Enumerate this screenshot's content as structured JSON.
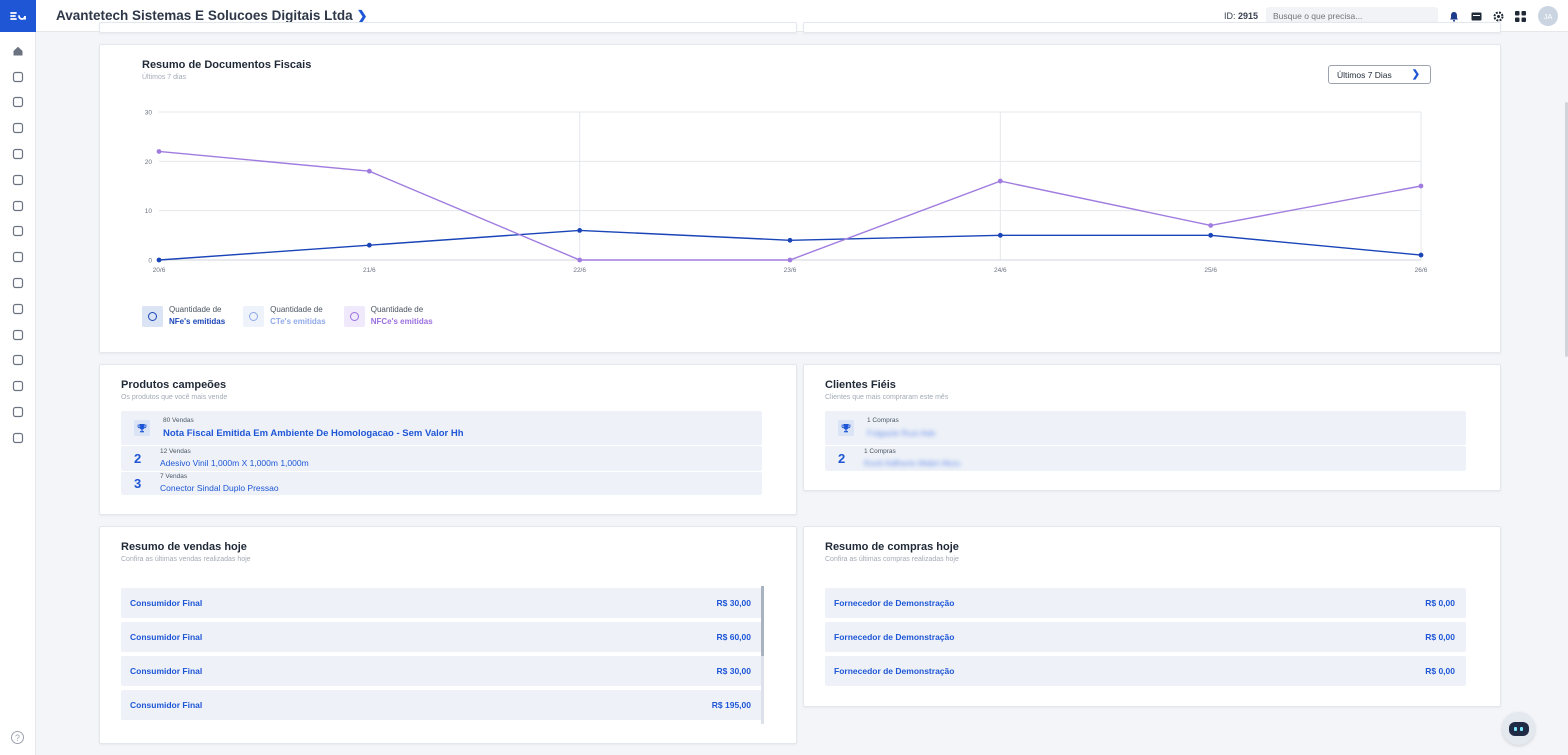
{
  "header": {
    "company_name": "Avantetech Sistemas E Solucoes Digitais Ltda",
    "id_prefix": "ID:",
    "id_value": "2915",
    "search_placeholder": "Busque o que precisa...",
    "avatar_initials": "JA"
  },
  "sidebar": {
    "icons": [
      "home-icon",
      "edit-icon",
      "chart-bars-icon",
      "connections-icon",
      "login-icon",
      "documents-icon",
      "cart-icon",
      "scan-icon",
      "receipt-icon",
      "percent-icon",
      "box-icon",
      "warehouse-icon",
      "truck-icon",
      "bag-icon",
      "settings-house-icon",
      "monitor-chart-icon"
    ],
    "help_label": "?"
  },
  "colors": {
    "accent": "#1e56d6",
    "nfe_line": "#1a45b8",
    "cte_line": "#b9c8f0",
    "nfce_line": "#a07ce0"
  },
  "fiscal_summary": {
    "title": "Resumo de Documentos Fiscais",
    "subtitle": "Últimos 7 dias",
    "period_button": "Últimos 7 Dias",
    "legend": [
      {
        "prefix": "Quantidade de",
        "label": "NFe's emitidas",
        "color": "#1a45b8",
        "bg": "#dbe4f5"
      },
      {
        "prefix": "Quantidade de",
        "label": "CTe's emitidas",
        "color": "#8fa9e8",
        "bg": "#eef2fb"
      },
      {
        "prefix": "Quantidade de",
        "label": "NFCe's emitidas",
        "color": "#9a6fe0",
        "bg": "#efe9fb"
      }
    ]
  },
  "chart_data": {
    "type": "line",
    "x": [
      "20/6",
      "21/6",
      "22/6",
      "23/6",
      "24/6",
      "25/6",
      "26/6"
    ],
    "ylim": [
      0,
      30
    ],
    "yticks": [
      "0",
      "10",
      "20",
      "30"
    ],
    "grid": true,
    "series": [
      {
        "name": "NFe's emitidas",
        "color": "#1a45b8",
        "values": [
          0,
          3,
          6,
          4,
          5,
          5,
          1
        ]
      },
      {
        "name": "NFCe's emitidas",
        "color": "#a07ce0",
        "values": [
          22,
          18,
          0,
          0,
          16,
          7,
          15
        ]
      }
    ]
  },
  "products": {
    "title": "Produtos campeões",
    "subtitle": "Os produtos que você mais vende",
    "items": [
      {
        "rank": "1",
        "count": "80 Vendas",
        "name": "Nota Fiscal Emitida Em Ambiente De Homologacao - Sem Valor Hh"
      },
      {
        "rank": "2",
        "count": "12 Vendas",
        "name": "Adesivo Vinil 1,000m X 1,000m 1,000m"
      },
      {
        "rank": "3",
        "count": "7 Vendas",
        "name": "Conector Sindal Duplo Pressao"
      }
    ]
  },
  "clients": {
    "title": "Clientes Fiéis",
    "subtitle": "Clientes que mais compraram este mês",
    "items": [
      {
        "rank": "1",
        "count": "1 Compras",
        "name": "Fulgazie Ruxi Ade"
      },
      {
        "rank": "2",
        "count": "1 Compras",
        "name": "Kovti Adlhorio Mabri Akzu"
      }
    ]
  },
  "sales_today": {
    "title": "Resumo de vendas hoje",
    "subtitle": "Confira as últimas vendas realizadas hoje",
    "rows": [
      {
        "name": "Consumidor Final",
        "value": "R$ 30,00"
      },
      {
        "name": "Consumidor Final",
        "value": "R$ 60,00"
      },
      {
        "name": "Consumidor Final",
        "value": "R$ 30,00"
      },
      {
        "name": "Consumidor Final",
        "value": "R$ 195,00"
      }
    ]
  },
  "purchases_today": {
    "title": "Resumo de compras hoje",
    "subtitle": "Confira as últimas compras realizadas hoje",
    "rows": [
      {
        "name": "Fornecedor de Demonstração",
        "value": "R$ 0,00"
      },
      {
        "name": "Fornecedor de Demonstração",
        "value": "R$ 0,00"
      },
      {
        "name": "Fornecedor de Demonstração",
        "value": "R$ 0,00"
      }
    ]
  }
}
